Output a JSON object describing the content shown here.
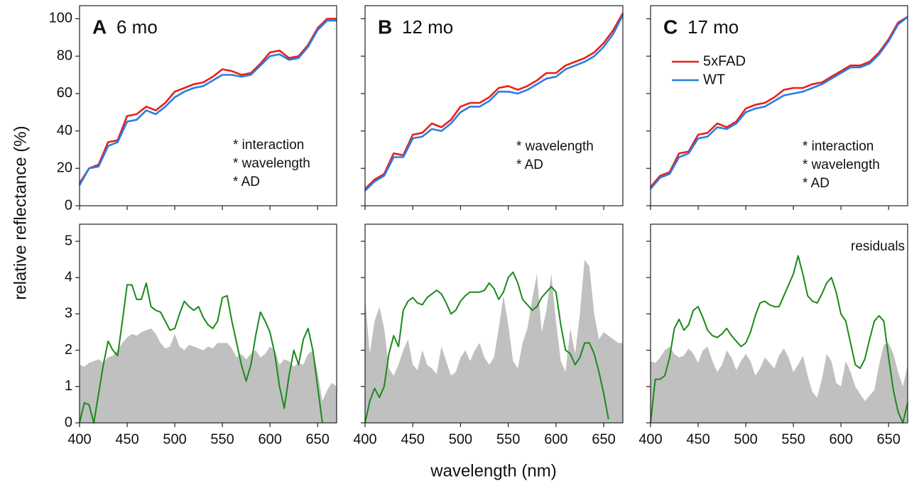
{
  "ylabel": "relative reflectance (%)",
  "xlabel": "wavelength (nm)",
  "chart_data": [
    {
      "type": "line",
      "panel_label": "A",
      "title": "6 mo",
      "xlim": [
        400,
        670
      ],
      "ylim": [
        0,
        107
      ],
      "xticks": [
        400,
        450,
        500,
        550,
        600,
        650
      ],
      "xtick_labels": false,
      "yticks": [
        0,
        20,
        40,
        60,
        80,
        100
      ],
      "annotations": [
        "* interaction",
        "* wavelength",
        "* AD"
      ],
      "x": [
        400,
        410,
        420,
        430,
        440,
        450,
        460,
        470,
        480,
        490,
        500,
        510,
        520,
        530,
        540,
        550,
        560,
        570,
        580,
        590,
        600,
        610,
        620,
        630,
        640,
        650,
        660,
        670
      ],
      "series": [
        {
          "color": "#e8201a",
          "values": [
            12,
            20,
            22,
            34,
            35,
            48,
            49,
            53,
            51,
            55,
            61,
            63,
            65,
            66,
            69,
            73,
            72,
            70,
            71,
            76,
            82,
            83,
            79,
            80,
            86,
            95,
            100,
            100
          ]
        },
        {
          "color": "#2a7de1",
          "values": [
            11,
            20,
            21,
            32,
            34,
            45,
            46,
            51,
            49,
            53,
            58,
            61,
            63,
            64,
            67,
            70,
            70,
            69,
            70,
            75,
            80,
            81,
            78,
            79,
            85,
            94,
            99,
            99
          ]
        }
      ]
    },
    {
      "type": "line",
      "panel_label": "B",
      "title": "12 mo",
      "xlim": [
        400,
        670
      ],
      "ylim": [
        0,
        107
      ],
      "xticks": [
        400,
        450,
        500,
        550,
        600,
        650
      ],
      "xtick_labels": false,
      "yticks": [
        0,
        20,
        40,
        60,
        80,
        100
      ],
      "ytick_labels": false,
      "annotations": [
        "* wavelength",
        "* AD"
      ],
      "x": [
        400,
        410,
        420,
        430,
        440,
        450,
        460,
        470,
        480,
        490,
        500,
        510,
        520,
        530,
        540,
        550,
        560,
        570,
        580,
        590,
        600,
        610,
        620,
        630,
        640,
        650,
        660,
        670
      ],
      "series": [
        {
          "color": "#e8201a",
          "values": [
            9,
            14,
            17,
            28,
            27,
            38,
            39,
            44,
            42,
            46,
            53,
            55,
            55,
            58,
            63,
            64,
            62,
            64,
            67,
            71,
            71,
            75,
            77,
            79,
            82,
            87,
            94,
            103
          ]
        },
        {
          "color": "#2a7de1",
          "values": [
            8,
            13,
            16,
            26,
            26,
            36,
            37,
            41,
            40,
            44,
            50,
            53,
            53,
            56,
            61,
            61,
            60,
            62,
            65,
            68,
            69,
            73,
            75,
            77,
            80,
            85,
            92,
            102
          ]
        }
      ]
    },
    {
      "type": "line",
      "panel_label": "C",
      "title": "17 mo",
      "xlim": [
        400,
        670
      ],
      "ylim": [
        0,
        107
      ],
      "xticks": [
        400,
        450,
        500,
        550,
        600,
        650
      ],
      "xtick_labels": false,
      "yticks": [
        0,
        20,
        40,
        60,
        80,
        100
      ],
      "ytick_labels": false,
      "annotations": [
        "* interaction",
        "* wavelength",
        "* AD"
      ],
      "x": [
        400,
        410,
        420,
        430,
        440,
        450,
        460,
        470,
        480,
        490,
        500,
        510,
        520,
        530,
        540,
        550,
        560,
        570,
        580,
        590,
        600,
        610,
        620,
        630,
        640,
        650,
        660,
        670
      ],
      "series": [
        {
          "name": "5xFAD",
          "color": "#e8201a",
          "values": [
            10,
            16,
            18,
            28,
            29,
            38,
            39,
            44,
            42,
            45,
            52,
            54,
            55,
            58,
            62,
            63,
            63,
            65,
            66,
            69,
            72,
            75,
            75,
            77,
            82,
            89,
            98,
            101
          ]
        },
        {
          "name": "WT",
          "color": "#2a7de1",
          "values": [
            9,
            15,
            17,
            26,
            28,
            36,
            37,
            42,
            41,
            44,
            50,
            52,
            53,
            56,
            59,
            60,
            61,
            63,
            65,
            68,
            71,
            74,
            74,
            76,
            81,
            88,
            97,
            101
          ]
        }
      ]
    },
    {
      "type": "area-line",
      "xlim": [
        400,
        670
      ],
      "ylim": [
        0,
        5.47
      ],
      "xticks": [
        400,
        450,
        500,
        550,
        600,
        650
      ],
      "yticks": [
        0,
        1,
        2,
        3,
        4,
        5
      ],
      "x": [
        400,
        405,
        410,
        415,
        420,
        425,
        430,
        435,
        440,
        445,
        450,
        455,
        460,
        465,
        470,
        475,
        480,
        485,
        490,
        495,
        500,
        505,
        510,
        515,
        520,
        525,
        530,
        535,
        540,
        545,
        550,
        555,
        560,
        565,
        570,
        575,
        580,
        585,
        590,
        595,
        600,
        605,
        610,
        615,
        620,
        625,
        630,
        635,
        640,
        645,
        650,
        655,
        660,
        665,
        670
      ],
      "series": [
        {
          "color": "#c0c0c0",
          "fill": true,
          "values": [
            1.6,
            1.55,
            1.65,
            1.7,
            1.75,
            1.65,
            1.8,
            1.85,
            2.0,
            2.2,
            2.35,
            2.45,
            2.4,
            2.5,
            2.55,
            2.6,
            2.45,
            2.2,
            2.05,
            2.1,
            2.45,
            2.1,
            2.0,
            2.15,
            2.1,
            2.05,
            2.0,
            2.1,
            2.05,
            2.2,
            2.2,
            2.2,
            2.05,
            1.8,
            1.9,
            1.75,
            1.9,
            2.0,
            1.8,
            1.9,
            2.1,
            2.0,
            1.6,
            1.75,
            1.7,
            1.55,
            1.65,
            1.6,
            1.9,
            2.0,
            1.4,
            0.6,
            0.9,
            1.1,
            1.0
          ]
        },
        {
          "color": "#1a8a1a",
          "values": [
            0,
            0.55,
            0.5,
            0,
            0.8,
            1.6,
            2.25,
            2.0,
            1.85,
            2.8,
            3.8,
            3.8,
            3.4,
            3.4,
            3.85,
            3.2,
            3.1,
            3.05,
            2.8,
            2.55,
            2.6,
            3.0,
            3.35,
            3.2,
            3.1,
            3.2,
            2.9,
            2.7,
            2.6,
            2.8,
            3.45,
            3.5,
            2.8,
            2.2,
            1.6,
            1.15,
            1.6,
            2.4,
            3.05,
            2.8,
            2.5,
            1.9,
            1.0,
            0.4,
            1.3,
            2.0,
            1.6,
            2.3,
            2.6,
            2.0,
            1.0,
            0,
            null,
            null,
            null
          ]
        }
      ]
    },
    {
      "type": "area-line",
      "xlim": [
        400,
        670
      ],
      "ylim": [
        0,
        5.47
      ],
      "xticks": [
        400,
        450,
        500,
        550,
        600,
        650
      ],
      "yticks": [
        0,
        1,
        2,
        3,
        4,
        5
      ],
      "ytick_labels": false,
      "x": [
        400,
        405,
        410,
        415,
        420,
        425,
        430,
        435,
        440,
        445,
        450,
        455,
        460,
        465,
        470,
        475,
        480,
        485,
        490,
        495,
        500,
        505,
        510,
        515,
        520,
        525,
        530,
        535,
        540,
        545,
        550,
        555,
        560,
        565,
        570,
        575,
        580,
        585,
        590,
        595,
        600,
        605,
        610,
        615,
        620,
        625,
        630,
        635,
        640,
        645,
        650,
        655,
        660,
        665,
        670
      ],
      "series": [
        {
          "color": "#c0c0c0",
          "fill": true,
          "values": [
            3.45,
            1.9,
            2.8,
            3.2,
            2.6,
            1.5,
            1.3,
            1.6,
            2.0,
            2.3,
            1.6,
            1.45,
            2.0,
            1.6,
            1.5,
            1.35,
            2.1,
            1.7,
            1.3,
            1.4,
            1.8,
            2.0,
            1.7,
            2.0,
            2.2,
            1.8,
            1.6,
            1.8,
            2.6,
            3.5,
            2.7,
            1.7,
            1.5,
            2.2,
            2.6,
            3.4,
            4.1,
            2.5,
            3.1,
            4.1,
            2.8,
            1.7,
            1.4,
            2.6,
            1.9,
            3.0,
            4.5,
            4.3,
            3.0,
            2.3,
            2.5,
            2.4,
            2.3,
            2.2,
            2.2
          ]
        },
        {
          "color": "#1a8a1a",
          "values": [
            0,
            0.6,
            0.95,
            0.7,
            1.0,
            1.9,
            2.4,
            2.1,
            3.1,
            3.35,
            3.45,
            3.3,
            3.25,
            3.45,
            3.55,
            3.65,
            3.55,
            3.3,
            3.0,
            3.1,
            3.35,
            3.5,
            3.6,
            3.6,
            3.6,
            3.65,
            3.85,
            3.7,
            3.4,
            3.6,
            4.0,
            4.15,
            3.85,
            3.4,
            3.25,
            3.1,
            3.2,
            3.45,
            3.6,
            3.75,
            3.6,
            2.7,
            2.0,
            1.9,
            1.6,
            1.8,
            2.2,
            2.2,
            1.9,
            1.4,
            0.8,
            0.1,
            null,
            null,
            null
          ]
        }
      ]
    },
    {
      "type": "area-line",
      "xlim": [
        400,
        670
      ],
      "ylim": [
        0,
        5.47
      ],
      "xticks": [
        400,
        450,
        500,
        550,
        600,
        650
      ],
      "yticks": [
        0,
        1,
        2,
        3,
        4,
        5
      ],
      "ytick_labels": false,
      "annotations": [
        "residuals"
      ],
      "x": [
        400,
        405,
        410,
        415,
        420,
        425,
        430,
        435,
        440,
        445,
        450,
        455,
        460,
        465,
        470,
        475,
        480,
        485,
        490,
        495,
        500,
        505,
        510,
        515,
        520,
        525,
        530,
        535,
        540,
        545,
        550,
        555,
        560,
        565,
        570,
        575,
        580,
        585,
        590,
        595,
        600,
        605,
        610,
        615,
        620,
        625,
        630,
        635,
        640,
        645,
        650,
        655,
        660,
        665,
        670
      ],
      "series": [
        {
          "color": "#c0c0c0",
          "fill": true,
          "values": [
            1.7,
            1.65,
            1.8,
            2.0,
            2.1,
            1.9,
            1.8,
            1.85,
            2.05,
            1.9,
            1.65,
            2.0,
            2.1,
            1.7,
            1.4,
            1.6,
            2.0,
            1.8,
            1.45,
            1.7,
            1.9,
            1.7,
            1.3,
            1.5,
            1.8,
            1.65,
            1.5,
            1.85,
            2.05,
            1.8,
            1.4,
            1.6,
            1.85,
            1.3,
            0.85,
            0.7,
            1.2,
            1.9,
            1.7,
            1.1,
            1.0,
            1.7,
            1.4,
            1.0,
            0.8,
            0.6,
            0.75,
            0.9,
            1.6,
            2.15,
            2.2,
            1.9,
            1.4,
            1.0,
            1.6
          ]
        },
        {
          "color": "#1a8a1a",
          "values": [
            0,
            1.2,
            1.2,
            1.3,
            1.8,
            2.6,
            2.85,
            2.55,
            2.7,
            3.1,
            3.2,
            2.9,
            2.55,
            2.4,
            2.35,
            2.45,
            2.6,
            2.4,
            2.25,
            2.1,
            2.2,
            2.5,
            2.95,
            3.3,
            3.35,
            3.25,
            3.2,
            3.2,
            3.5,
            3.8,
            4.1,
            4.6,
            4.1,
            3.5,
            3.35,
            3.3,
            3.55,
            3.85,
            4.0,
            3.6,
            3.0,
            2.8,
            2.2,
            1.6,
            1.5,
            1.75,
            2.3,
            2.8,
            2.95,
            2.8,
            1.8,
            0.9,
            0.3,
            0,
            0.55
          ]
        }
      ]
    }
  ]
}
